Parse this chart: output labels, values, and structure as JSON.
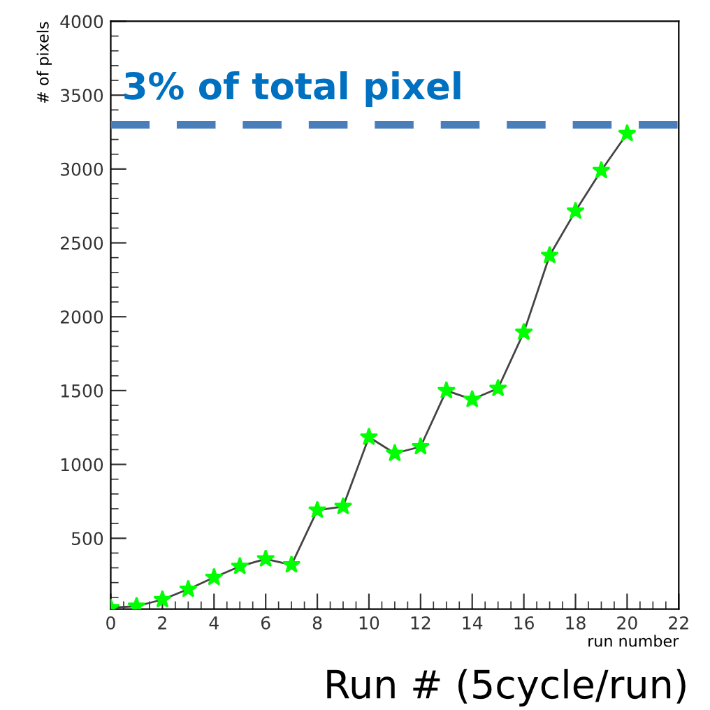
{
  "chart_data": {
    "type": "line",
    "xlabel": "run number",
    "ylabel": "# of pixels",
    "x": [
      0,
      1,
      2,
      3,
      4,
      5,
      6,
      7,
      8,
      9,
      10,
      11,
      12,
      13,
      14,
      15,
      16,
      17,
      18,
      19,
      20
    ],
    "series": [
      {
        "color": "#00ff00",
        "values": [
          30,
          40,
          85,
          155,
          235,
          310,
          360,
          320,
          690,
          715,
          1185,
          1075,
          1120,
          1500,
          1440,
          1515,
          1895,
          2415,
          2715,
          2990,
          3240
        ]
      }
    ],
    "marker": "star",
    "line_style": "solid",
    "xlim": [
      0,
      22
    ],
    "xticks": [
      0,
      2,
      4,
      6,
      8,
      10,
      12,
      14,
      16,
      18,
      20,
      22
    ],
    "ylim": [
      20,
      4000
    ],
    "yticks": [
      500,
      1000,
      1500,
      2000,
      2500,
      3000,
      3500,
      4000
    ],
    "ref_lines": [
      {
        "axis": "y",
        "value": 3300,
        "label": "3% of total pixel",
        "color": "#4a7ebb",
        "line_style": "dashed"
      }
    ],
    "annotations": [
      "Run # (5cycle/run)"
    ],
    "grid": false,
    "legend": false
  }
}
